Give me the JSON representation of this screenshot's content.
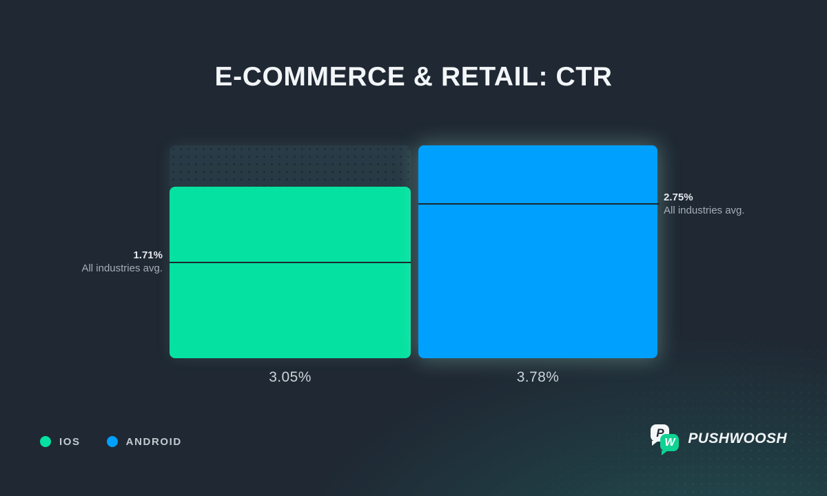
{
  "title": "E-COMMERCE & RETAIL: CTR",
  "chart_data": {
    "type": "bar",
    "title": "E-COMMERCE & RETAIL: CTR",
    "categories": [
      "IOS",
      "ANDROID"
    ],
    "values": [
      3.05,
      3.78
    ],
    "value_labels": [
      "3.05%",
      "3.78%"
    ],
    "unit": "%",
    "ylim": [
      0,
      3.78
    ],
    "grid": false,
    "legend_position": "bottom-left",
    "series_colors": {
      "ios": "#05e1a0",
      "android": "#00a0ff"
    },
    "benchmarks": [
      {
        "series": "IOS",
        "value": 1.71,
        "label": "1.71%",
        "sublabel": "All industries avg.",
        "label_side": "left"
      },
      {
        "series": "ANDROID",
        "value": 2.75,
        "label": "2.75%",
        "sublabel": "All industries avg.",
        "label_side": "right"
      }
    ]
  },
  "legend": {
    "items": [
      {
        "label": "IOS",
        "color": "#05e1a0"
      },
      {
        "label": "ANDROID",
        "color": "#00a0ff"
      }
    ]
  },
  "brand": {
    "name": "PUSHWOOSH",
    "icon_letter_1": "P",
    "icon_letter_2": "W"
  },
  "colors": {
    "background": "#1f2833",
    "background_glow": "#235c5c",
    "benchmark_line": "#1b2731",
    "text_primary": "#f3f6f8",
    "text_secondary": "#a6afb7"
  }
}
